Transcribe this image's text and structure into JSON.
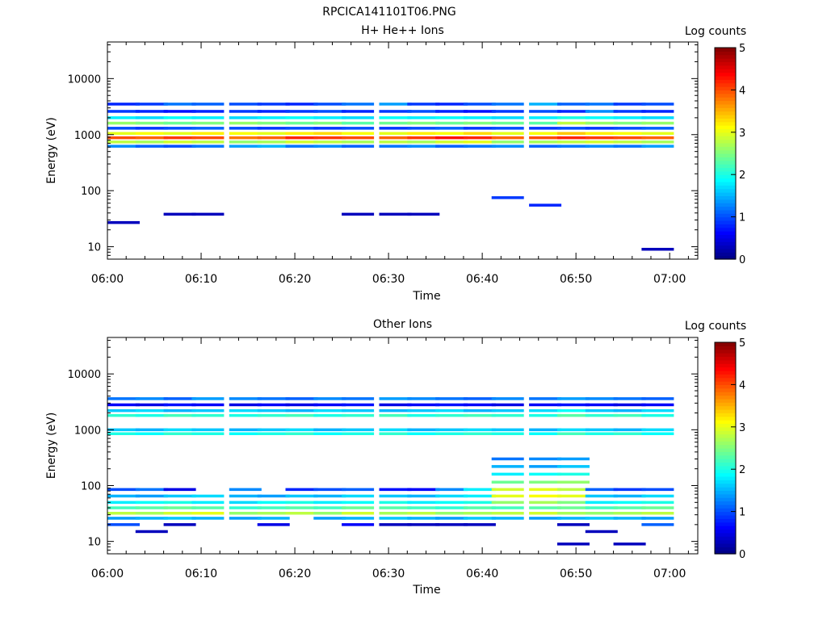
{
  "figure_title": "RPCICA141101T06.PNG",
  "chart_data": [
    {
      "type": "heatmap",
      "title": "H+ He++ Ions",
      "xlabel": "Time",
      "ylabel": "Energy (eV)",
      "x_ticks": [
        "06:00",
        "06:10",
        "06:20",
        "06:30",
        "06:40",
        "06:50",
        "07:00"
      ],
      "y_scale": "log",
      "y_ticks": [
        "10",
        "100",
        "1000",
        "10000"
      ],
      "ylim": [
        6,
        45000
      ],
      "colorbar": {
        "label": "Log counts",
        "ticks": [
          "0",
          "1",
          "2",
          "3",
          "4",
          "5"
        ],
        "range": [
          0,
          5
        ]
      },
      "columns": [
        "06:00",
        "06:03",
        "06:06",
        "06:09",
        "06:13",
        "06:16",
        "06:19",
        "06:22",
        "06:25",
        "06:29",
        "06:32",
        "06:35",
        "06:38",
        "06:41",
        "06:45",
        "06:48",
        "06:51",
        "06:54",
        "06:57"
      ],
      "bands": [
        {
          "energy_eV": 3500,
          "log_counts": [
            0.8,
            0.9,
            1.2,
            1.1,
            1.0,
            0.9,
            0.8,
            1.0,
            1.2,
            1.4,
            0.9,
            0.8,
            1.0,
            1.2,
            1.5,
            1.1,
            1.2,
            0.9,
            1.0
          ]
        },
        {
          "energy_eV": 2600,
          "log_counts": [
            0.9,
            0.8,
            0.7,
            0.8,
            0.9,
            0.8,
            0.9,
            1.0,
            0.8,
            0.9,
            1.0,
            0.8,
            0.7,
            0.9,
            1.0,
            0.8,
            1.3,
            0.9,
            0.8
          ]
        },
        {
          "energy_eV": 2000,
          "log_counts": [
            1.8,
            1.7,
            1.9,
            1.8,
            1.7,
            1.8,
            1.9,
            1.8,
            1.7,
            1.9,
            1.8,
            1.9,
            1.8,
            1.7,
            1.8,
            2.0,
            1.9,
            1.8,
            1.7
          ]
        },
        {
          "energy_eV": 1600,
          "log_counts": [
            2.6,
            2.5,
            2.4,
            2.5,
            2.6,
            2.5,
            2.4,
            2.5,
            2.3,
            2.4,
            2.5,
            2.4,
            2.5,
            2.4,
            2.3,
            2.8,
            2.6,
            2.5,
            2.6
          ]
        },
        {
          "energy_eV": 1300,
          "log_counts": [
            1.0,
            0.9,
            1.0,
            1.1,
            1.0,
            0.9,
            1.0,
            0.9,
            1.0,
            0.9,
            1.0,
            1.1,
            0.9,
            1.0,
            0.9,
            1.0,
            0.9,
            1.0,
            1.1
          ]
        },
        {
          "energy_eV": 1050,
          "log_counts": [
            3.0,
            3.1,
            3.0,
            3.2,
            3.1,
            3.0,
            3.2,
            3.3,
            3.1,
            3.0,
            3.2,
            3.1,
            3.3,
            3.0,
            3.1,
            3.4,
            3.2,
            3.1,
            3.0
          ]
        },
        {
          "energy_eV": 880,
          "log_counts": [
            4.0,
            3.9,
            4.1,
            4.0,
            3.8,
            3.9,
            4.2,
            4.1,
            4.0,
            3.9,
            4.1,
            4.3,
            4.2,
            3.9,
            4.0,
            4.2,
            4.1,
            4.0,
            3.9
          ]
        },
        {
          "energy_eV": 740,
          "log_counts": [
            2.8,
            2.7,
            2.9,
            2.8,
            2.6,
            2.7,
            2.9,
            2.8,
            2.7,
            2.8,
            2.7,
            2.9,
            3.0,
            2.6,
            2.7,
            2.8,
            2.9,
            2.8,
            2.7
          ]
        },
        {
          "energy_eV": 620,
          "log_counts": [
            1.3,
            1.1,
            1.0,
            1.2,
            1.4,
            1.5,
            1.2,
            1.3,
            1.1,
            1.2,
            1.3,
            1.1,
            1.2,
            1.3,
            1.1,
            1.2,
            1.3,
            1.2,
            1.4
          ]
        },
        {
          "energy_eV": 75,
          "log_counts": [
            0,
            0,
            0,
            0,
            0,
            0,
            0,
            0,
            0,
            0,
            0,
            0,
            0,
            0.9,
            0,
            0,
            0,
            0,
            0
          ]
        },
        {
          "energy_eV": 55,
          "log_counts": [
            0,
            0,
            0,
            0,
            0,
            0,
            0,
            0,
            0,
            0,
            0,
            0,
            0,
            0,
            0.8,
            0,
            0,
            0,
            0
          ]
        },
        {
          "energy_eV": 38,
          "log_counts": [
            0,
            0,
            0.3,
            0.3,
            0,
            0,
            0,
            0,
            0.3,
            0.3,
            0.3,
            0,
            0,
            0,
            0,
            0,
            0,
            0,
            0
          ]
        },
        {
          "energy_eV": 27,
          "log_counts": [
            0.3,
            0,
            0,
            0,
            0,
            0,
            0,
            0,
            0,
            0,
            0,
            0,
            0,
            0,
            0,
            0,
            0,
            0,
            0
          ]
        },
        {
          "energy_eV": 9,
          "log_counts": [
            0,
            0,
            0,
            0,
            0,
            0,
            0,
            0,
            0,
            0,
            0,
            0,
            0,
            0,
            0,
            0,
            0,
            0,
            0.3
          ]
        }
      ]
    },
    {
      "type": "heatmap",
      "title": "Other Ions",
      "xlabel": "Time",
      "ylabel": "Energy (eV)",
      "x_ticks": [
        "06:00",
        "06:10",
        "06:20",
        "06:30",
        "06:40",
        "06:50",
        "07:00"
      ],
      "y_scale": "log",
      "y_ticks": [
        "10",
        "100",
        "1000",
        "10000"
      ],
      "ylim": [
        6,
        45000
      ],
      "colorbar": {
        "label": "Log counts",
        "ticks": [
          "0",
          "1",
          "2",
          "3",
          "4",
          "5"
        ],
        "range": [
          0,
          5
        ]
      },
      "columns": [
        "06:00",
        "06:03",
        "06:06",
        "06:09",
        "06:13",
        "06:16",
        "06:19",
        "06:22",
        "06:25",
        "06:29",
        "06:32",
        "06:35",
        "06:38",
        "06:41",
        "06:45",
        "06:48",
        "06:51",
        "06:54",
        "06:57"
      ],
      "bands": [
        {
          "energy_eV": 3600,
          "log_counts": [
            1.2,
            1.3,
            1.1,
            1.4,
            1.3,
            1.2,
            1.1,
            1.3,
            1.2,
            1.4,
            1.3,
            1.2,
            1.1,
            1.3,
            1.2,
            1.4,
            1.3,
            1.2,
            1.1
          ]
        },
        {
          "energy_eV": 2800,
          "log_counts": [
            0.6,
            0.5,
            0.7,
            0.6,
            0.5,
            0.6,
            0.5,
            0.6,
            0.7,
            0.5,
            0.6,
            0.7,
            0.6,
            0.5,
            0.6,
            0.7,
            0.6,
            0.5,
            0.6
          ]
        },
        {
          "energy_eV": 2200,
          "log_counts": [
            1.6,
            1.7,
            1.5,
            1.6,
            1.7,
            1.6,
            1.5,
            1.7,
            1.6,
            1.5,
            1.6,
            1.7,
            1.5,
            1.6,
            1.7,
            1.9,
            1.6,
            1.5,
            1.7
          ]
        },
        {
          "energy_eV": 1800,
          "log_counts": [
            2.1,
            2.0,
            2.2,
            2.1,
            2.0,
            2.1,
            2.2,
            2.0,
            2.1,
            2.2,
            2.0,
            2.1,
            2.2,
            2.1,
            2.0,
            2.3,
            2.1,
            2.2,
            2.0
          ]
        },
        {
          "energy_eV": 1000,
          "log_counts": [
            1.6,
            1.5,
            1.7,
            1.6,
            1.5,
            1.6,
            1.7,
            1.5,
            1.6,
            1.7,
            1.5,
            1.6,
            1.7,
            1.6,
            1.5,
            1.7,
            1.6,
            1.5,
            1.7
          ]
        },
        {
          "energy_eV": 850,
          "log_counts": [
            2.0,
            1.9,
            2.1,
            2.0,
            1.9,
            2.0,
            2.1,
            1.9,
            2.0,
            2.1,
            1.9,
            2.0,
            2.1,
            2.0,
            1.9,
            2.2,
            2.0,
            2.1,
            1.9
          ]
        },
        {
          "energy_eV": 300,
          "log_counts": [
            0,
            0,
            0,
            0,
            0,
            0,
            0,
            0,
            0,
            0,
            0,
            0,
            0,
            1.2,
            1.3,
            1.4,
            0,
            0,
            0
          ]
        },
        {
          "energy_eV": 220,
          "log_counts": [
            0,
            0,
            0,
            0,
            0,
            0,
            0,
            0,
            0,
            0,
            0,
            0,
            0,
            1.5,
            1.4,
            1.6,
            0,
            0,
            0
          ]
        },
        {
          "energy_eV": 160,
          "log_counts": [
            0,
            0,
            0,
            0,
            0,
            0,
            0,
            0,
            0,
            0,
            0,
            0,
            0,
            1.8,
            1.9,
            2.0,
            0,
            0,
            0
          ]
        },
        {
          "energy_eV": 115,
          "log_counts": [
            0,
            0,
            0,
            0,
            0,
            0,
            0,
            0,
            0,
            0,
            0,
            0,
            0,
            2.4,
            2.5,
            2.6,
            0,
            0,
            0
          ]
        },
        {
          "energy_eV": 85,
          "log_counts": [
            1.0,
            1.2,
            0.5,
            0,
            1.3,
            0,
            0.8,
            1.0,
            1.1,
            0.7,
            0.6,
            1.3,
            1.8,
            2.9,
            3.0,
            2.8,
            1.1,
            0.9,
            1.0
          ]
        },
        {
          "energy_eV": 65,
          "log_counts": [
            1.5,
            1.4,
            1.6,
            1.7,
            1.5,
            1.4,
            1.6,
            1.5,
            1.7,
            1.6,
            1.5,
            1.7,
            1.8,
            3.0,
            3.1,
            3.0,
            1.6,
            1.5,
            1.7
          ]
        },
        {
          "energy_eV": 50,
          "log_counts": [
            1.8,
            1.9,
            2.0,
            1.8,
            1.7,
            1.9,
            2.0,
            1.8,
            1.9,
            2.0,
            1.8,
            1.9,
            2.0,
            2.6,
            2.7,
            2.5,
            1.8,
            1.9,
            2.0
          ]
        },
        {
          "energy_eV": 40,
          "log_counts": [
            2.2,
            2.3,
            2.4,
            2.3,
            2.1,
            2.2,
            2.3,
            2.2,
            2.4,
            2.3,
            2.2,
            2.1,
            2.3,
            2.2,
            2.3,
            2.4,
            2.2,
            2.3,
            2.4
          ]
        },
        {
          "energy_eV": 32,
          "log_counts": [
            2.8,
            2.7,
            2.9,
            3.0,
            2.6,
            2.7,
            2.8,
            2.6,
            2.9,
            2.7,
            2.8,
            2.6,
            2.7,
            2.8,
            2.9,
            2.7,
            2.6,
            2.7,
            2.8
          ]
        },
        {
          "energy_eV": 26,
          "log_counts": [
            1.4,
            1.5,
            1.6,
            1.5,
            1.4,
            1.5,
            0,
            1.4,
            1.5,
            1.6,
            1.5,
            1.4,
            1.6,
            1.5,
            1.4,
            1.5,
            1.6,
            1.5,
            1.4
          ]
        },
        {
          "energy_eV": 20,
          "log_counts": [
            1.0,
            0,
            0.3,
            0,
            0,
            0.5,
            0,
            0,
            0.6,
            0.3,
            0.3,
            0.3,
            0.3,
            0,
            0,
            0.3,
            0,
            0,
            1.1
          ]
        },
        {
          "energy_eV": 15,
          "log_counts": [
            0,
            0.3,
            0,
            0,
            0,
            0,
            0,
            0,
            0,
            0,
            0,
            0,
            0,
            0,
            0,
            0,
            0.3,
            0,
            0
          ]
        },
        {
          "energy_eV": 9,
          "log_counts": [
            0,
            0,
            0,
            0,
            0,
            0,
            0,
            0,
            0,
            0,
            0,
            0,
            0,
            0,
            0,
            0.3,
            0,
            0.3,
            0
          ]
        }
      ]
    }
  ]
}
